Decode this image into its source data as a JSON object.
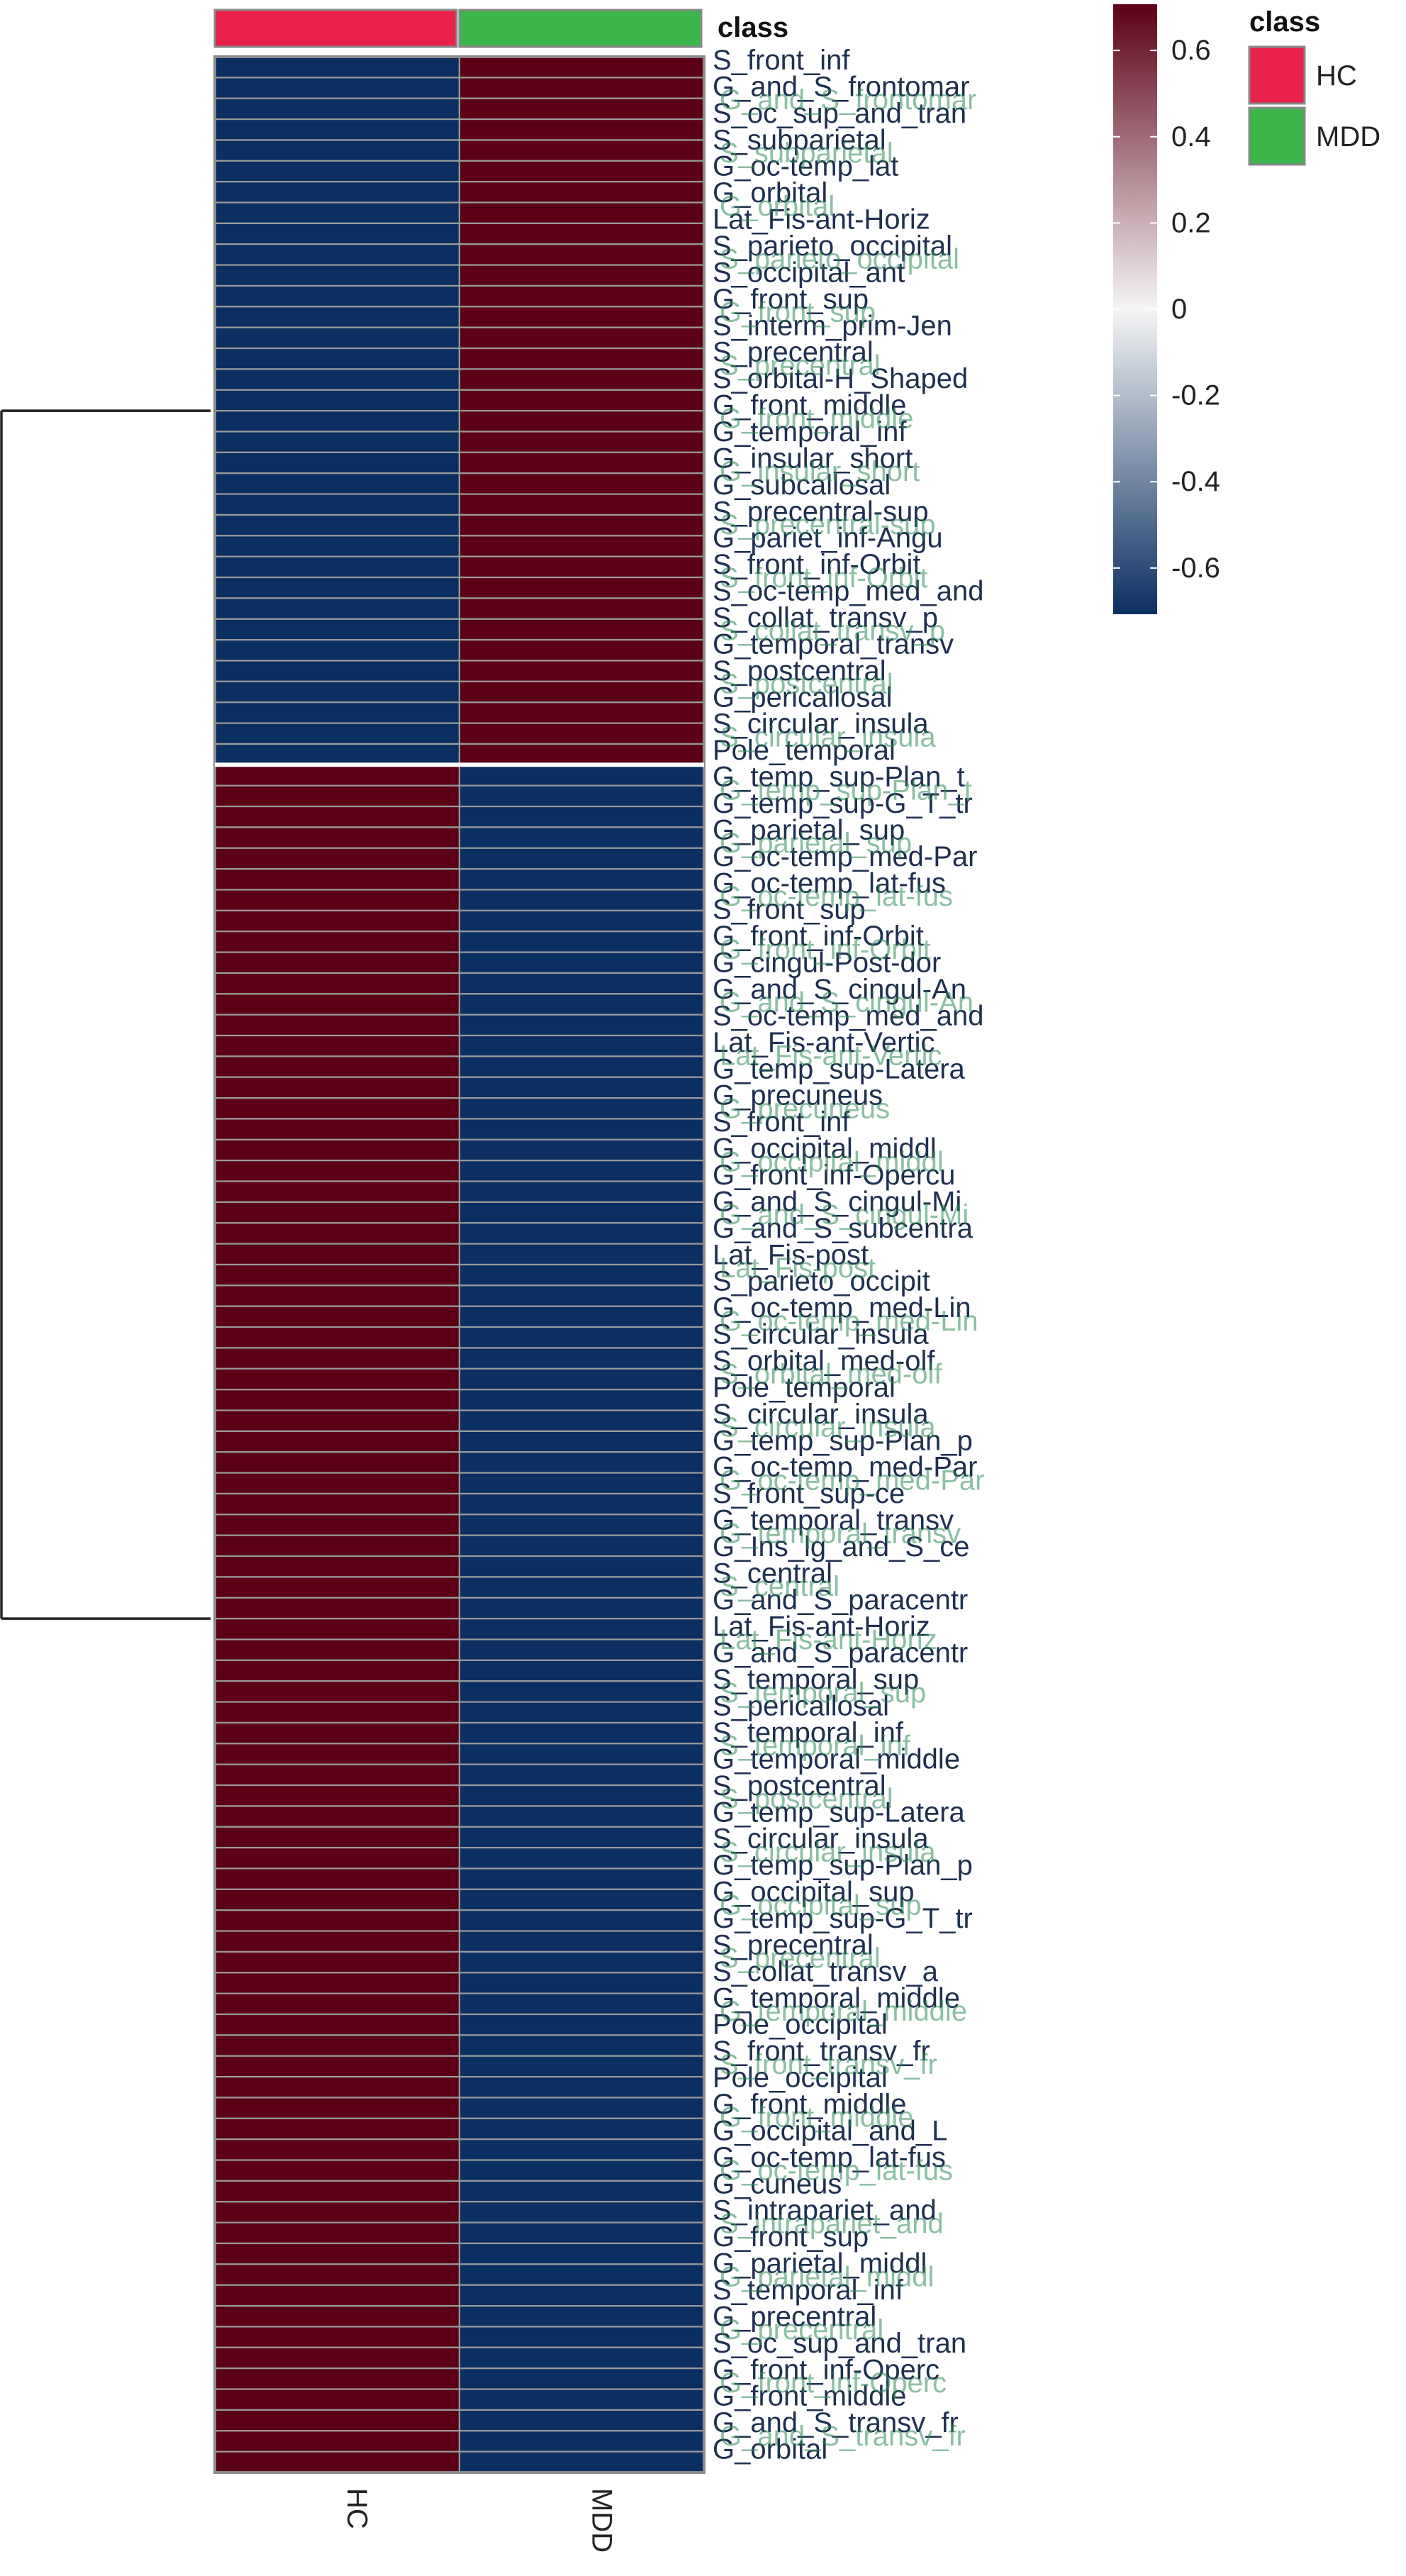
{
  "chart_data": {
    "type": "heatmap",
    "columns": [
      "HC",
      "MDD"
    ],
    "annotation": {
      "title": "class",
      "categories": [
        {
          "name": "HC",
          "color": "#e8224a"
        },
        {
          "name": "MDD",
          "color": "#3cb54a"
        }
      ]
    },
    "color_scale": {
      "ticks": [
        "0.6",
        "0.4",
        "0.2",
        "0",
        "-0.2",
        "-0.4",
        "-0.6"
      ],
      "range": [
        -0.7071,
        0.7071
      ],
      "low_color": "#0b2f61",
      "mid_color": "#f5f5f5",
      "high_color": "#5c0016"
    },
    "clusters": [
      {
        "rows": 34,
        "values": [
          -0.7071,
          0.7071
        ]
      },
      {
        "rows": 82,
        "values": [
          0.7071,
          -0.7071
        ]
      }
    ],
    "dendrogram": "two clusters",
    "row_labels_visible": [
      "S_front_inf",
      "G_and_S_frontomar",
      "S_oc_sup_and_tran",
      "S_subparietal",
      "G_oc-temp_lat",
      "G_orbital",
      "Lat_Fis-ant-Horiz",
      "S_parieto_occipital",
      "S_occipital_ant",
      "G_front_sup",
      "S_interm_prim-Jen",
      "S_precentral",
      "S_orbital-H_Shaped",
      "G_front_middle",
      "G_temporal_inf",
      "G_insular_short",
      "G_subcallosal",
      "S_precentral-sup",
      "G_pariet_inf-Angu",
      "S_front_inf-Orbit",
      "S_oc-temp_med_and",
      "S_collat_transv_p",
      "G_temporal_transv",
      "S_postcentral",
      "G_pericallosal",
      "S_circular_insula",
      "Pole_temporal",
      "G_temp_sup-Plan_t",
      "G_temp_sup-G_T_tr",
      "G_parietal_sup",
      "G_oc-temp_med-Par",
      "G_oc-temp_lat-fus",
      "S_front_sup",
      "G_front_inf-Orbit",
      "G_cingul-Post-dor",
      "G_and_S_cingul-An",
      "S_oc-temp_med_and",
      "Lat_Fis-ant-Vertic",
      "G_temp_sup-Latera",
      "G_precuneus",
      "S_front_inf",
      "G_occipital_middl",
      "G_front_inf-Opercu",
      "G_and_S_cingul-Mi",
      "G_and_S_subcentra",
      "Lat_Fis-post",
      "S_parieto_occipit",
      "G_oc-temp_med-Lin",
      "S_circular_insula",
      "S_orbital_med-olf",
      "Pole_temporal",
      "S_circular_insula",
      "G_temp_sup-Plan_p",
      "G_oc-temp_med-Par",
      "S_front_sup-ce",
      "G_temporal_transv",
      "G_Ins_lg_and_S_ce",
      "S_central",
      "G_and_S_paracentr",
      "Lat_Fis-ant-Horiz",
      "G_and_S_paracentr",
      "S_temporal_sup",
      "S_pericallosal",
      "S_temporal_inf",
      "G_temporal_middle",
      "S_postcentral",
      "G_temp_sup-Latera",
      "S_circular_insula",
      "G_temp_sup-Plan_p",
      "G_occipital_sup",
      "G_temp_sup-G_T_tr",
      "S_precentral",
      "S_collat_transv_a",
      "G_temporal_middle",
      "Pole_occipital",
      "S_front_transv_fr",
      "Pole_occipital",
      "G_front_middle",
      "G_occipital_and_L",
      "G_oc-temp_lat-fus",
      "G_cuneus",
      "S_intrapariet_and",
      "G_front_sup",
      "G_parietal_middl",
      "S_temporal_inf",
      "G_precentral",
      "S_oc_sup_and_tran",
      "G_front_inf-Operc",
      "G_front_middle",
      "G_and_S_transv_fr",
      "G_orbital"
    ]
  }
}
